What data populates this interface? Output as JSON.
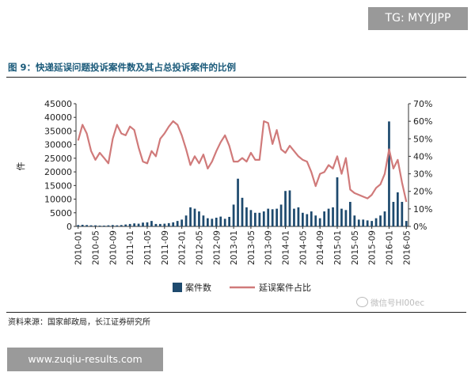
{
  "badge": {
    "text": "TG: MYYJJPP"
  },
  "figure": {
    "title": "图 9：快递延误问题投诉案件数及其占总投诉案件的比例",
    "source": "资料来源：国家邮政局，长江证券研究所",
    "watermark": "微信号HI00ec"
  },
  "footer": {
    "url": "www.zuqiu-results.com"
  },
  "colors": {
    "bar": "#1e4a6e",
    "line": "#d07a7a",
    "title": "#1a5a7a"
  },
  "chart_data": {
    "type": "bar",
    "title": "",
    "xlabel": "",
    "ylabel": "件",
    "ylim": [
      0,
      45000
    ],
    "y2lim": [
      0,
      70
    ],
    "y_ticks": [
      "0",
      "5000",
      "10000",
      "15000",
      "20000",
      "25000",
      "30000",
      "35000",
      "40000",
      "45000"
    ],
    "y2_ticks": [
      "0%",
      "10%",
      "20%",
      "30%",
      "40%",
      "50%",
      "60%",
      "70%"
    ],
    "x_tick_labels": [
      "2010-01",
      "2010-05",
      "2010-09",
      "2011-01",
      "2011-05",
      "2011-09",
      "2012-01",
      "2012-05",
      "2012-09",
      "2013-01",
      "2013-05",
      "2013-09",
      "2014-01",
      "2014-05",
      "2014-09",
      "2015-01",
      "2015-05",
      "2015-09",
      "2016-01",
      "2016-05"
    ],
    "legend_position": "bottom",
    "categories": [
      "2010-01",
      "2010-02",
      "2010-03",
      "2010-04",
      "2010-05",
      "2010-06",
      "2010-07",
      "2010-08",
      "2010-09",
      "2010-10",
      "2010-11",
      "2010-12",
      "2011-01",
      "2011-02",
      "2011-03",
      "2011-04",
      "2011-05",
      "2011-06",
      "2011-07",
      "2011-08",
      "2011-09",
      "2011-10",
      "2011-11",
      "2011-12",
      "2012-01",
      "2012-02",
      "2012-03",
      "2012-04",
      "2012-05",
      "2012-06",
      "2012-07",
      "2012-08",
      "2012-09",
      "2012-10",
      "2012-11",
      "2012-12",
      "2013-01",
      "2013-02",
      "2013-03",
      "2013-04",
      "2013-05",
      "2013-06",
      "2013-07",
      "2013-08",
      "2013-09",
      "2013-10",
      "2013-11",
      "2013-12",
      "2014-01",
      "2014-02",
      "2014-03",
      "2014-04",
      "2014-05",
      "2014-06",
      "2014-07",
      "2014-08",
      "2014-09",
      "2014-10",
      "2014-11",
      "2014-12",
      "2015-01",
      "2015-02",
      "2015-03",
      "2015-04",
      "2015-05",
      "2015-06",
      "2015-07",
      "2015-08",
      "2015-09",
      "2015-10",
      "2015-11",
      "2015-12",
      "2016-01",
      "2016-02",
      "2016-03",
      "2016-04",
      "2016-05"
    ],
    "series": [
      {
        "name": "案件数",
        "kind": "bar",
        "axis": "left",
        "values": [
          500,
          600,
          500,
          400,
          400,
          300,
          300,
          400,
          500,
          400,
          500,
          700,
          900,
          1100,
          1000,
          1400,
          1500,
          2000,
          900,
          900,
          1000,
          1200,
          1500,
          2000,
          2500,
          4000,
          7000,
          6500,
          5500,
          4000,
          3000,
          2800,
          3200,
          3600,
          2800,
          3500,
          8000,
          17500,
          10500,
          7000,
          6000,
          5000,
          5000,
          5500,
          6500,
          6300,
          6500,
          8000,
          13000,
          13200,
          6500,
          7000,
          5000,
          4500,
          5500,
          4000,
          3000,
          5500,
          6500,
          7000,
          18000,
          6500,
          6000,
          9000,
          4000,
          2500,
          2500,
          2200,
          2000,
          3000,
          4000,
          5500,
          38500,
          9000,
          12500,
          9000,
          2000
        ]
      },
      {
        "name": "延误案件占比",
        "kind": "line",
        "axis": "right",
        "values": [
          49,
          58,
          53,
          43,
          38,
          42,
          39,
          36,
          50,
          58,
          53,
          52,
          57,
          55,
          45,
          37,
          36,
          43,
          40,
          50,
          53,
          57,
          60,
          58,
          52,
          44,
          35,
          40,
          36,
          41,
          33,
          37,
          43,
          48,
          52,
          46,
          37,
          37,
          39,
          37,
          42,
          38,
          38,
          60,
          59,
          47,
          55,
          44,
          42,
          46,
          43,
          40,
          38,
          37,
          31,
          23,
          30,
          31,
          35,
          33,
          40,
          30,
          39,
          21,
          19,
          18,
          17,
          16,
          18,
          22,
          24,
          30,
          44,
          33,
          38,
          25,
          14
        ]
      }
    ]
  }
}
